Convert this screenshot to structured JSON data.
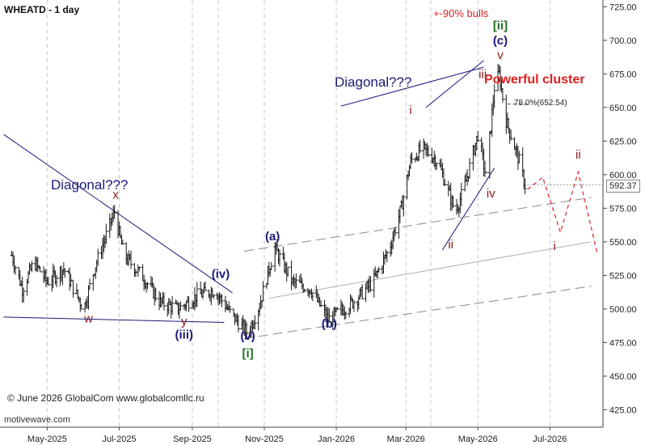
{
  "header": {
    "title": "WHEATD - 1 day"
  },
  "footer": {
    "copyright": "© June 2026 GlobalCom www.globalcomllc.ru",
    "brand": "motivewave.com"
  },
  "colors": {
    "navy": "#1a1a7a",
    "darkred": "#8b1a1a",
    "red": "#e02020",
    "green": "#1e6e1e",
    "grid": "#c8c8c8",
    "price": "#1a1a1a"
  },
  "chart_data": {
    "type": "ohlc",
    "title": "WHEATD - 1 day",
    "x_ticks": [
      "May-2025",
      "Jul-2025",
      "Sep-2025",
      "Nov-2025",
      "Jan-2026",
      "Mar-2026",
      "May-2026",
      "Jul-2026"
    ],
    "y_ticks": [
      425,
      450,
      475,
      500,
      525,
      550,
      575,
      600,
      625,
      650,
      675,
      700,
      725
    ],
    "ylim": [
      412,
      730
    ],
    "last_price": "592.37",
    "last_price_value": 592.37,
    "retracement_label": "78.0%(652.54)",
    "retracement_value": 652.54,
    "price_path": [
      [
        "2025-04-01",
        540
      ],
      [
        "2025-04-10",
        515
      ],
      [
        "2025-04-20",
        535
      ],
      [
        "2025-05-01",
        520
      ],
      [
        "2025-05-15",
        530
      ],
      [
        "2025-06-01",
        500
      ],
      [
        "2025-06-10",
        530
      ],
      [
        "2025-06-22",
        560
      ],
      [
        "2025-06-27",
        572
      ],
      [
        "2025-07-05",
        540
      ],
      [
        "2025-07-20",
        525
      ],
      [
        "2025-08-05",
        505
      ],
      [
        "2025-08-20",
        500
      ],
      [
        "2025-09-05",
        510
      ],
      [
        "2025-09-20",
        514
      ],
      [
        "2025-10-05",
        495
      ],
      [
        "2025-10-18",
        482
      ],
      [
        "2025-10-28",
        503
      ],
      [
        "2025-11-05",
        530
      ],
      [
        "2025-11-10",
        545
      ],
      [
        "2025-11-25",
        520
      ],
      [
        "2025-12-10",
        515
      ],
      [
        "2025-12-25",
        492
      ],
      [
        "2026-01-15",
        505
      ],
      [
        "2026-02-01",
        520
      ],
      [
        "2026-02-15",
        545
      ],
      [
        "2026-02-25",
        575
      ],
      [
        "2026-03-05",
        610
      ],
      [
        "2026-03-15",
        620
      ],
      [
        "2026-03-28",
        610
      ],
      [
        "2026-04-12",
        572
      ],
      [
        "2026-04-20",
        592
      ],
      [
        "2026-05-01",
        630
      ],
      [
        "2026-05-08",
        598
      ],
      [
        "2026-05-15",
        665
      ],
      [
        "2026-05-19",
        675
      ],
      [
        "2026-05-25",
        640
      ],
      [
        "2026-06-05",
        610
      ],
      [
        "2026-06-10",
        592
      ]
    ],
    "projection": [
      [
        "2026-06-12",
        589
      ],
      [
        "2026-06-25",
        598
      ],
      [
        "2026-07-10",
        557
      ],
      [
        "2026-07-25",
        602
      ],
      [
        "2026-08-10",
        542
      ]
    ],
    "wave_labels": [
      {
        "text": "w",
        "date": "2025-06-05",
        "price": 490,
        "color": "darkred"
      },
      {
        "text": "x",
        "date": "2025-06-28",
        "price": 582,
        "color": "darkred"
      },
      {
        "text": "y",
        "date": "2025-08-25",
        "price": 488,
        "color": "darkred"
      },
      {
        "text": "(iii)",
        "date": "2025-08-25",
        "price": 478,
        "color": "navy"
      },
      {
        "text": "(iv)",
        "date": "2025-09-25",
        "price": 523,
        "color": "navy"
      },
      {
        "text": "(v)",
        "date": "2025-10-18",
        "price": 477,
        "color": "navy"
      },
      {
        "text": "[i]",
        "date": "2025-10-18",
        "price": 464,
        "color": "green"
      },
      {
        "text": "(a)",
        "date": "2025-11-08",
        "price": 551,
        "color": "navy"
      },
      {
        "text": "(b)",
        "date": "2025-12-26",
        "price": 486,
        "color": "navy"
      },
      {
        "text": "i",
        "date": "2026-03-05",
        "price": 645,
        "color": "darkred"
      },
      {
        "text": "ii",
        "date": "2026-04-08",
        "price": 545,
        "color": "darkred"
      },
      {
        "text": "iii",
        "date": "2026-05-05",
        "price": 672,
        "color": "darkred"
      },
      {
        "text": "iv",
        "date": "2026-05-12",
        "price": 583,
        "color": "darkred"
      },
      {
        "text": "v",
        "date": "2026-05-20",
        "price": 686,
        "color": "darkred"
      },
      {
        "text": "(c)",
        "date": "2026-05-20",
        "price": 697,
        "color": "navy"
      },
      {
        "text": "[ii]",
        "date": "2026-05-20",
        "price": 708,
        "color": "green"
      },
      {
        "text": "i",
        "date": "2026-07-05",
        "price": 544,
        "color": "darkred"
      },
      {
        "text": "ii",
        "date": "2026-07-25",
        "price": 612,
        "color": "darkred"
      }
    ],
    "trendlines": [
      {
        "from": [
          "2025-03-25",
          630
        ],
        "to": [
          "2025-10-05",
          512
        ],
        "color": "navy"
      },
      {
        "from": [
          "2025-03-25",
          494
        ],
        "to": [
          "2025-09-28",
          490
        ],
        "color": "navy"
      },
      {
        "from": [
          "2026-01-05",
          651
        ],
        "to": [
          "2026-05-06",
          680
        ],
        "color": "navy"
      },
      {
        "from": [
          "2026-03-18",
          650
        ],
        "to": [
          "2026-05-06",
          685
        ],
        "color": "navy"
      },
      {
        "from": [
          "2026-04-01",
          544
        ],
        "to": [
          "2026-05-15",
          605
        ],
        "color": "navy"
      },
      {
        "from": [
          "2025-10-15",
          478
        ],
        "to": [
          "2026-08-05",
          517
        ],
        "color": "gray-dash"
      },
      {
        "from": [
          "2025-10-15",
          543
        ],
        "to": [
          "2026-08-05",
          583
        ],
        "color": "gray-dash"
      },
      {
        "from": [
          "2025-11-05",
          508
        ],
        "to": [
          "2026-08-05",
          550
        ],
        "color": "gray"
      }
    ],
    "annotations": [
      {
        "text": "+-90% bulls",
        "color": "red"
      },
      {
        "text": "Powerful cluster",
        "color": "red"
      },
      {
        "text": "Diagonal???",
        "color": "navy"
      },
      {
        "text": "Diagonal???",
        "color": "navy"
      }
    ]
  }
}
